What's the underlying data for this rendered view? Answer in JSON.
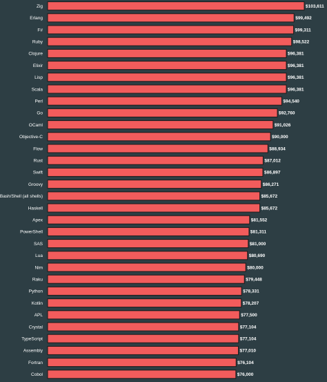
{
  "colors": {
    "background": "#2d3e44",
    "bar": "#f25c5c",
    "bar_border": "#1a1a1a",
    "text": "#ffffff"
  },
  "chart_data": {
    "type": "bar",
    "orientation": "horizontal",
    "title": "",
    "xlabel": "",
    "ylabel": "",
    "grid": false,
    "legend": "none",
    "xlim": [
      0,
      103611
    ],
    "categories": [
      "Zig",
      "Erlang",
      "F#",
      "Ruby",
      "Clojure",
      "Elixir",
      "Lisp",
      "Scala",
      "Perl",
      "Go",
      "OCaml",
      "Objective-C",
      "Flow",
      "Rust",
      "Swift",
      "Groovy",
      "Bash/Shell (all shells)",
      "Haskell",
      "Apex",
      "PowerShell",
      "SAS",
      "Lua",
      "Nim",
      "Raku",
      "Python",
      "Kotlin",
      "APL",
      "Crystal",
      "TypeScript",
      "Assembly",
      "Fortran",
      "Cobol"
    ],
    "values": [
      103611,
      99492,
      99311,
      98522,
      96381,
      96381,
      96381,
      96381,
      94540,
      92760,
      91026,
      90000,
      88934,
      87012,
      86897,
      86271,
      85672,
      85672,
      81552,
      81311,
      81000,
      80690,
      80000,
      79448,
      78331,
      78207,
      77500,
      77104,
      77104,
      77010,
      76104,
      76000
    ],
    "value_labels": [
      "$103,611",
      "$99,492",
      "$99,311",
      "$98,522",
      "$96,381",
      "$96,381",
      "$96,381",
      "$96,381",
      "$94,540",
      "$92,760",
      "$91,026",
      "$90,000",
      "$88,934",
      "$87,012",
      "$86,897",
      "$86,271",
      "$85,672",
      "$85,672",
      "$81,552",
      "$81,311",
      "$81,000",
      "$80,690",
      "$80,000",
      "$79,448",
      "$78,331",
      "$78,207",
      "$77,500",
      "$77,104",
      "$77,104",
      "$77,010",
      "$76,104",
      "$76,000"
    ]
  }
}
